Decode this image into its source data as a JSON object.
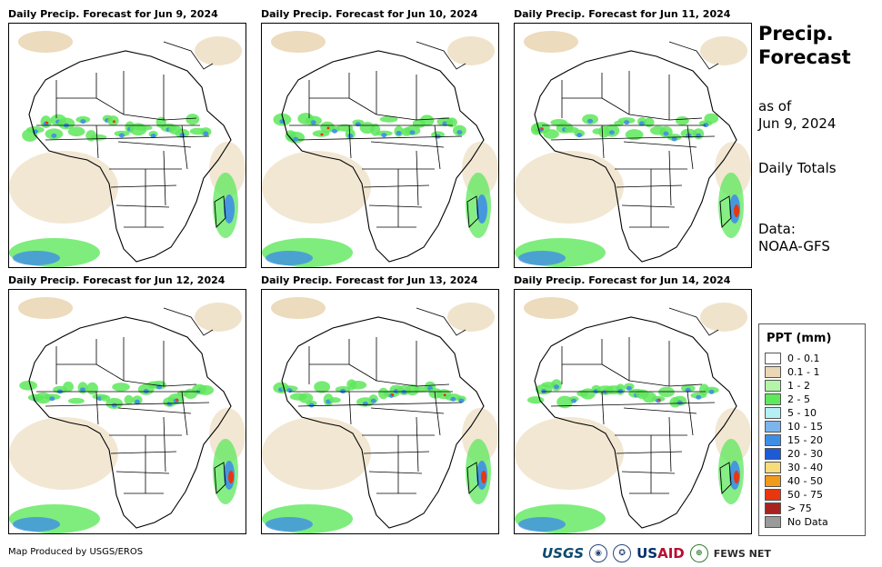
{
  "panels": [
    {
      "title": "Daily Precip. Forecast for Jun 9, 2024"
    },
    {
      "title": "Daily Precip. Forecast for Jun 10, 2024"
    },
    {
      "title": "Daily Precip. Forecast for Jun 11, 2024"
    },
    {
      "title": "Daily Precip. Forecast for Jun 12, 2024"
    },
    {
      "title": "Daily Precip. Forecast for Jun 13, 2024"
    },
    {
      "title": "Daily Precip. Forecast for Jun 14, 2024"
    }
  ],
  "sidebar": {
    "title_line1": "Precip.",
    "title_line2": "Forecast",
    "asof_line1": "as of",
    "asof_line2": "Jun 9, 2024",
    "totals": "Daily Totals",
    "data_line1": "Data:",
    "data_line2": "NOAA-GFS"
  },
  "legend": {
    "title": "PPT (mm)",
    "items": [
      {
        "label": "0 - 0.1",
        "color": "#ffffff"
      },
      {
        "label": "0.1 - 1",
        "color": "#ead7b5"
      },
      {
        "label": "1 - 2",
        "color": "#b2f5a8"
      },
      {
        "label": "2 - 5",
        "color": "#5ee85c"
      },
      {
        "label": "5 - 10",
        "color": "#b4f0f4"
      },
      {
        "label": "10 - 15",
        "color": "#7cb4ec"
      },
      {
        "label": "15 - 20",
        "color": "#3f8ee6"
      },
      {
        "label": "20 - 30",
        "color": "#1d5ad8"
      },
      {
        "label": "30 - 40",
        "color": "#f7dc7c"
      },
      {
        "label": "40 - 50",
        "color": "#f29a1a"
      },
      {
        "label": "50 - 75",
        "color": "#e8360e"
      },
      {
        "label": "> 75",
        "color": "#a8231f"
      },
      {
        "label": "No Data",
        "color": "#9a9a9a"
      }
    ]
  },
  "footer": {
    "credit": "Map Produced by USGS/EROS",
    "logos": {
      "usgs": "USGS",
      "usaid_a": "US",
      "usaid_b": "AID",
      "fews": "FEWS NET"
    }
  }
}
